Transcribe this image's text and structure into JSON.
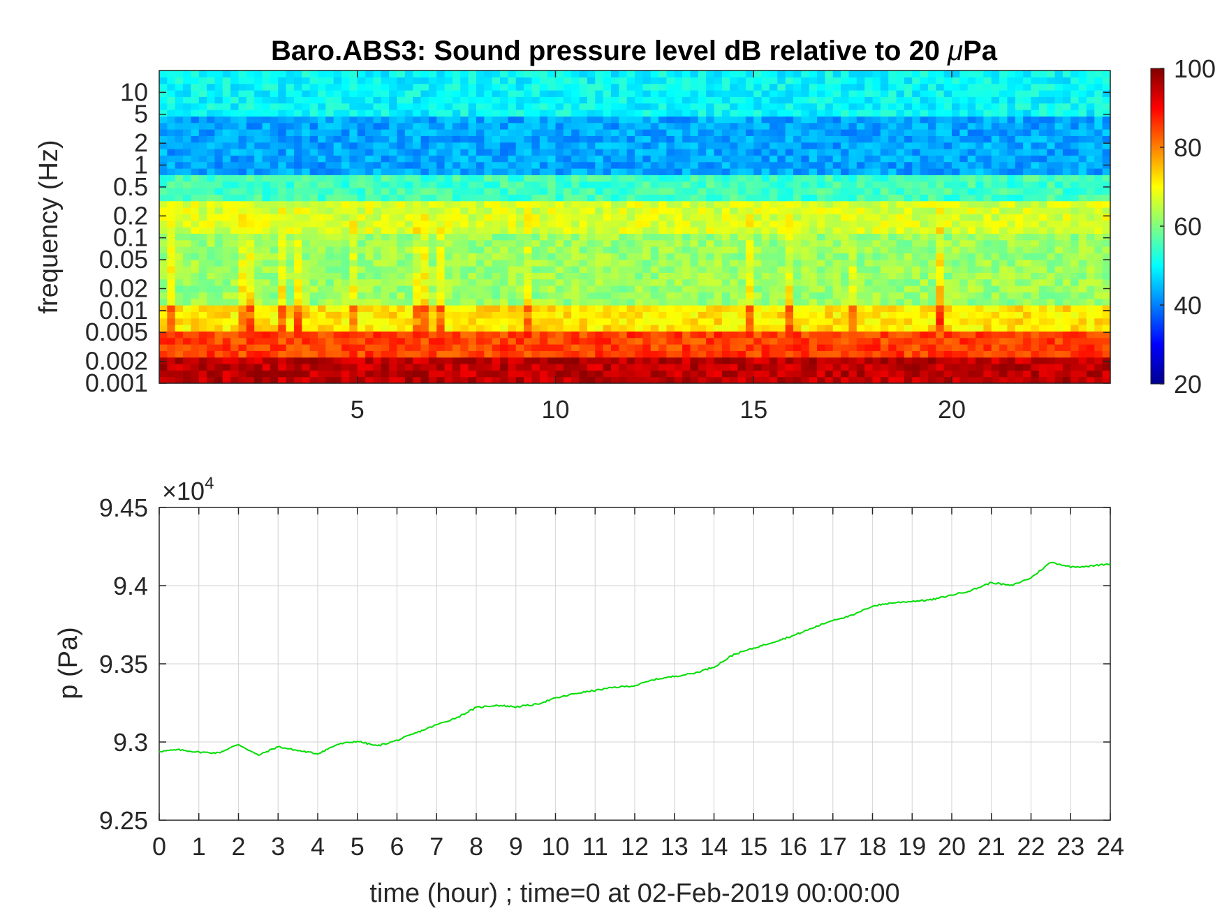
{
  "chart_data": [
    {
      "type": "heatmap",
      "title": "Baro.ABS3: Sound pressure level dB relative to 20 μPa",
      "title_main": "Baro.ABS3: Sound pressure level dB relative to 20 ",
      "title_mu": "μ",
      "title_end": "Pa",
      "ylabel": "frequency (Hz)",
      "xlabel": "",
      "xlim": [
        0,
        24
      ],
      "ylim_hz": [
        0.001,
        20
      ],
      "yscale": "log",
      "x_ticks": [
        "5",
        "10",
        "15",
        "20"
      ],
      "x_tick_values": [
        5,
        10,
        15,
        20
      ],
      "y_ticks": [
        "0.001",
        "0.002",
        "0.005",
        "0.01",
        "0.02",
        "0.05",
        "0.1",
        "0.2",
        "0.5",
        "1",
        "2",
        "5",
        "10"
      ],
      "y_tick_values": [
        0.001,
        0.002,
        0.005,
        0.01,
        0.02,
        0.05,
        0.1,
        0.2,
        0.5,
        1,
        2,
        5,
        10
      ],
      "colormap": "jet",
      "clim": [
        20,
        100
      ],
      "colorbar_ticks": [
        "20",
        "40",
        "60",
        "80",
        "100"
      ],
      "colorbar_tick_values": [
        20,
        40,
        60,
        80,
        100
      ],
      "band_levels_db": [
        {
          "f_low": 0.001,
          "f_high": 0.0025,
          "db": 95
        },
        {
          "f_low": 0.0025,
          "f_high": 0.005,
          "db": 85
        },
        {
          "f_low": 0.005,
          "f_high": 0.012,
          "db": 72
        },
        {
          "f_low": 0.012,
          "f_high": 0.12,
          "db": 62
        },
        {
          "f_low": 0.12,
          "f_high": 0.35,
          "db": 67
        },
        {
          "f_low": 0.35,
          "f_high": 0.8,
          "db": 55
        },
        {
          "f_low": 0.8,
          "f_high": 5,
          "db": 43
        },
        {
          "f_low": 5,
          "f_high": 20,
          "db": 50
        }
      ]
    },
    {
      "type": "line",
      "title": "",
      "xlabel": "time (hour) ; time=0 at 02-Feb-2019 00:00:00",
      "ylabel": "p (Pa)",
      "xlim": [
        0,
        24
      ],
      "ylim": [
        92500,
        94500
      ],
      "exponent_label": "×10",
      "exponent_power": "4",
      "x_ticks": [
        "0",
        "1",
        "2",
        "3",
        "4",
        "5",
        "6",
        "7",
        "8",
        "9",
        "10",
        "11",
        "12",
        "13",
        "14",
        "15",
        "16",
        "17",
        "18",
        "19",
        "20",
        "21",
        "22",
        "23",
        "24"
      ],
      "y_ticks": [
        "9.25",
        "9.3",
        "9.35",
        "9.4",
        "9.45"
      ],
      "y_tick_values": [
        92500,
        93000,
        93500,
        94000,
        94500
      ],
      "grid": true,
      "line_color": "#00dd00",
      "series": [
        {
          "x": [
            0,
            0.5,
            1,
            1.5,
            2,
            2.5,
            3,
            3.5,
            4,
            4.5,
            5,
            5.5,
            6,
            6.5,
            7,
            7.5,
            8,
            8.5,
            9,
            9.5,
            10,
            10.5,
            11,
            11.5,
            12,
            12.5,
            13,
            13.5,
            14,
            14.5,
            15,
            15.5,
            16,
            16.5,
            17,
            17.5,
            18,
            18.5,
            19,
            19.5,
            20,
            20.5,
            21,
            21.5,
            22,
            22.5,
            23,
            23.5,
            24
          ],
          "values": [
            92940,
            92950,
            92935,
            92930,
            92985,
            92915,
            92970,
            92945,
            92925,
            92985,
            93005,
            92975,
            93010,
            93060,
            93110,
            93155,
            93220,
            93235,
            93225,
            93240,
            93280,
            93310,
            93330,
            93350,
            93360,
            93400,
            93420,
            93440,
            93480,
            93560,
            93600,
            93640,
            93680,
            93730,
            93780,
            93810,
            93870,
            93890,
            93900,
            93910,
            93940,
            93970,
            94020,
            94000,
            94050,
            94150,
            94120,
            94125,
            94140
          ]
        }
      ]
    }
  ]
}
